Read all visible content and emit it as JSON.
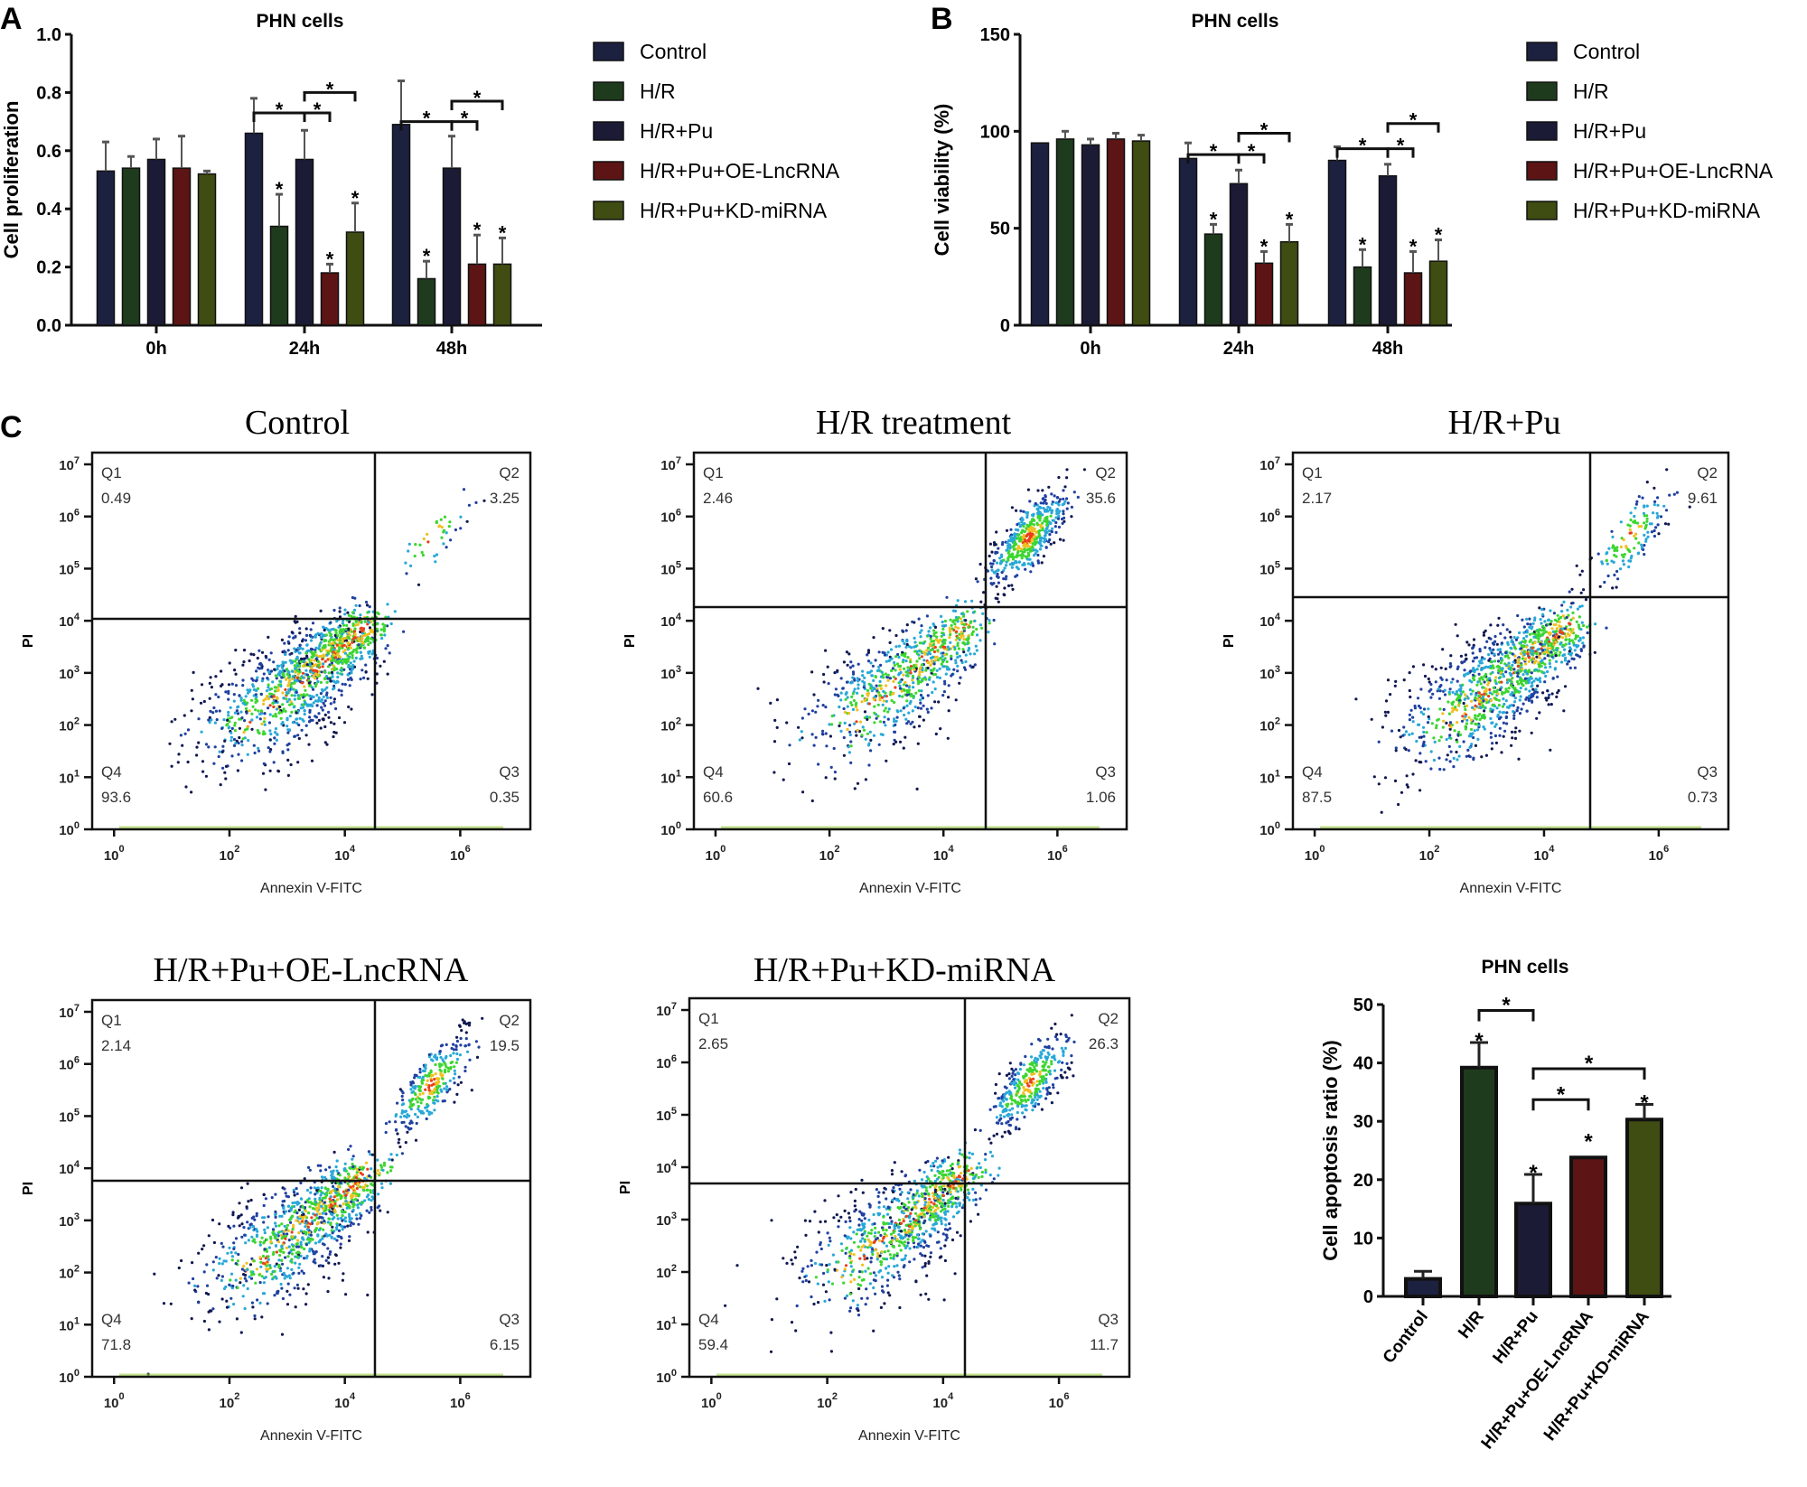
{
  "panel_labels": {
    "a": "A",
    "b": "B",
    "c": "C"
  },
  "sig_marker": "*",
  "colors": {
    "Control": "#1d2140",
    "H/R": "#1f3b1d",
    "H/R+Pu": "#1b1b36",
    "H/R+Pu+OE-LncRNA": "#5c1414",
    "H/R+Pu+KD-miRNA": "#3f4c12"
  },
  "chart_data": [
    {
      "id": "A",
      "type": "bar",
      "title": "PHN cells",
      "ylabel": "Cell proliferation",
      "xlabel": "",
      "ylim": [
        0,
        1.0
      ],
      "yticks": [
        0,
        0.2,
        0.4,
        0.6,
        0.8,
        1.0
      ],
      "ytick_labels": [
        "0.0",
        "0.2",
        "0.4",
        "0.6",
        "0.8",
        "1.0"
      ],
      "categories": [
        "0h",
        "24h",
        "48h"
      ],
      "legend_position": "right",
      "series": [
        {
          "name": "Control",
          "values": [
            0.53,
            0.66,
            0.69
          ],
          "errors": [
            0.1,
            0.12,
            0.15
          ],
          "sig": [
            false,
            false,
            false
          ]
        },
        {
          "name": "H/R",
          "values": [
            0.54,
            0.34,
            0.16
          ],
          "errors": [
            0.04,
            0.11,
            0.06
          ],
          "sig": [
            false,
            true,
            true
          ]
        },
        {
          "name": "H/R+Pu",
          "values": [
            0.57,
            0.57,
            0.54
          ],
          "errors": [
            0.07,
            0.1,
            0.11
          ],
          "sig": [
            false,
            false,
            false
          ]
        },
        {
          "name": "H/R+Pu+OE-LncRNA",
          "values": [
            0.54,
            0.18,
            0.21
          ],
          "errors": [
            0.11,
            0.03,
            0.1
          ],
          "sig": [
            false,
            true,
            true
          ]
        },
        {
          "name": "H/R+Pu+KD-miRNA",
          "values": [
            0.52,
            0.32,
            0.21
          ],
          "errors": [
            0.01,
            0.1,
            0.09
          ],
          "sig": [
            false,
            true,
            true
          ]
        }
      ],
      "brackets": [
        {
          "group": 1,
          "from": 0,
          "to": 2,
          "y": 0.73
        },
        {
          "group": 1,
          "from": 2,
          "to": 3,
          "y": 0.73
        },
        {
          "group": 1,
          "from": 2,
          "to": 4,
          "y": 0.8
        },
        {
          "group": 2,
          "from": 0,
          "to": 2,
          "y": 0.7
        },
        {
          "group": 2,
          "from": 2,
          "to": 3,
          "y": 0.7
        },
        {
          "group": 2,
          "from": 2,
          "to": 4,
          "y": 0.77
        }
      ]
    },
    {
      "id": "B",
      "type": "bar",
      "title": "PHN cells",
      "ylabel": "Cell viability (%)",
      "xlabel": "",
      "ylim": [
        0,
        150
      ],
      "yticks": [
        0,
        50,
        100,
        150
      ],
      "ytick_labels": [
        "0",
        "50",
        "100",
        "150"
      ],
      "categories": [
        "0h",
        "24h",
        "48h"
      ],
      "legend_position": "right",
      "series": [
        {
          "name": "Control",
          "values": [
            94,
            86,
            85
          ],
          "errors": [
            0,
            8,
            7
          ],
          "sig": [
            false,
            false,
            false
          ]
        },
        {
          "name": "H/R",
          "values": [
            96,
            47,
            30
          ],
          "errors": [
            4,
            5,
            9
          ],
          "sig": [
            false,
            true,
            true
          ]
        },
        {
          "name": "H/R+Pu",
          "values": [
            93,
            73,
            77
          ],
          "errors": [
            3,
            7,
            6
          ],
          "sig": [
            false,
            false,
            false
          ]
        },
        {
          "name": "H/R+Pu+OE-LncRNA",
          "values": [
            96,
            32,
            27
          ],
          "errors": [
            3,
            6,
            11
          ],
          "sig": [
            false,
            true,
            true
          ]
        },
        {
          "name": "H/R+Pu+KD-miRNA",
          "values": [
            95,
            43,
            33
          ],
          "errors": [
            3,
            9,
            11
          ],
          "sig": [
            false,
            true,
            true
          ]
        }
      ],
      "brackets": [
        {
          "group": 1,
          "from": 0,
          "to": 2,
          "y": 88
        },
        {
          "group": 1,
          "from": 2,
          "to": 3,
          "y": 88
        },
        {
          "group": 1,
          "from": 2,
          "to": 4,
          "y": 99
        },
        {
          "group": 2,
          "from": 0,
          "to": 2,
          "y": 91
        },
        {
          "group": 2,
          "from": 2,
          "to": 3,
          "y": 91
        },
        {
          "group": 2,
          "from": 2,
          "to": 4,
          "y": 104
        }
      ]
    },
    {
      "id": "C-flow",
      "type": "scatter",
      "xlabel": "Annexin V-FITC",
      "ylabel": "PI",
      "x_ticks": [
        {
          "base": "10",
          "exp": "0"
        },
        {
          "base": "10",
          "exp": "2"
        },
        {
          "base": "10",
          "exp": "4"
        },
        {
          "base": "10",
          "exp": "6"
        }
      ],
      "y_ticks": [
        {
          "base": "10",
          "exp": "0"
        },
        {
          "base": "10",
          "exp": "1"
        },
        {
          "base": "10",
          "exp": "2"
        },
        {
          "base": "10",
          "exp": "3"
        },
        {
          "base": "10",
          "exp": "4"
        },
        {
          "base": "10",
          "exp": "5"
        },
        {
          "base": "10",
          "exp": "6"
        },
        {
          "base": "10",
          "exp": "7"
        }
      ],
      "plots": [
        {
          "title": "Control",
          "quadrants": [
            {
              "name": "Q1",
              "value": "0.49"
            },
            {
              "name": "Q2",
              "value": "3.25"
            },
            {
              "name": "Q3",
              "value": "0.35"
            },
            {
              "name": "Q4",
              "value": "93.6"
            }
          ]
        },
        {
          "title": "H/R treatment",
          "quadrants": [
            {
              "name": "Q1",
              "value": "2.46"
            },
            {
              "name": "Q2",
              "value": "35.6"
            },
            {
              "name": "Q3",
              "value": "1.06"
            },
            {
              "name": "Q4",
              "value": "60.6"
            }
          ]
        },
        {
          "title": "H/R+Pu",
          "quadrants": [
            {
              "name": "Q1",
              "value": "2.17"
            },
            {
              "name": "Q2",
              "value": "9.61"
            },
            {
              "name": "Q3",
              "value": "0.73"
            },
            {
              "name": "Q4",
              "value": "87.5"
            }
          ]
        },
        {
          "title": "H/R+Pu+OE-LncRNA",
          "quadrants": [
            {
              "name": "Q1",
              "value": "2.14"
            },
            {
              "name": "Q2",
              "value": "19.5"
            },
            {
              "name": "Q3",
              "value": "6.15"
            },
            {
              "name": "Q4",
              "value": "71.8"
            }
          ]
        },
        {
          "title": "H/R+Pu+KD-miRNA",
          "quadrants": [
            {
              "name": "Q1",
              "value": "2.65"
            },
            {
              "name": "Q2",
              "value": "26.3"
            },
            {
              "name": "Q3",
              "value": "11.7"
            },
            {
              "name": "Q4",
              "value": "59.4"
            }
          ]
        }
      ]
    },
    {
      "id": "C-apoptosis",
      "type": "bar",
      "title": "PHN cells",
      "ylabel": "Cell apoptosis ratio (%)",
      "xlabel": "",
      "ylim": [
        0,
        50
      ],
      "yticks": [
        0,
        10,
        20,
        30,
        40,
        50
      ],
      "ytick_labels": [
        "0",
        "10",
        "20",
        "30",
        "40",
        "50"
      ],
      "categories": [
        "Control",
        "H/R",
        "H/R+Pu",
        "H/R+Pu+OE-LncRNA",
        "H/R+Pu+KD-miRNA"
      ],
      "values": [
        3.0,
        39.2,
        15.9,
        23.8,
        30.3
      ],
      "errors": [
        1.3,
        4.3,
        5.0,
        0.0,
        2.6
      ],
      "sig": [
        false,
        true,
        true,
        true,
        true
      ],
      "brackets": [
        {
          "from": 1,
          "to": 2,
          "y": 49
        },
        {
          "from": 2,
          "to": 4,
          "y": 39
        },
        {
          "from": 2,
          "to": 3,
          "y": 33.7
        }
      ]
    }
  ]
}
